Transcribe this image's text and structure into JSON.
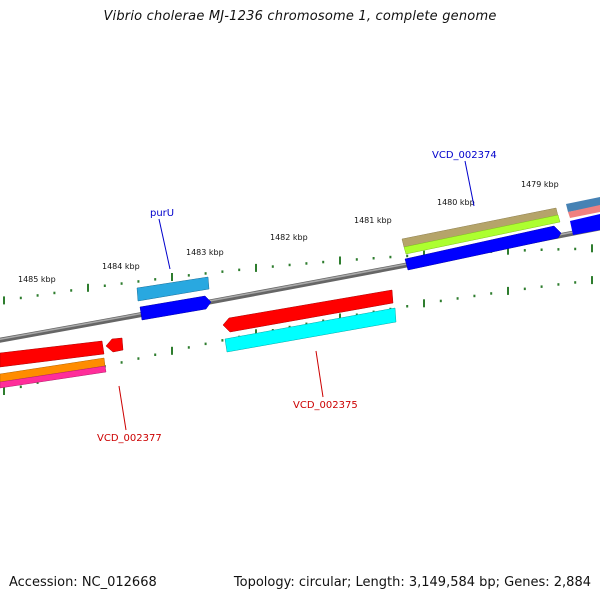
{
  "title": "Vibrio cholerae MJ-1236 chromosome 1, complete genome",
  "footer": {
    "accession": "Accession: NC_012668",
    "summary": "Topology: circular; Length: 3,149,584 bp; Genes: 2,884"
  },
  "kbp_labels": [
    "1485 kbp",
    "1484 kbp",
    "1483 kbp",
    "1482 kbp",
    "1481 kbp",
    "1480 kbp",
    "1479 kbp"
  ],
  "gene_labels": [
    "purU",
    "VCD_002374",
    "VCD_002375",
    "VCD_002377"
  ],
  "colors": {
    "backbone": "#808080",
    "tick": "#2e7d2e",
    "red": "#ff0000",
    "cyan": "#00ffff",
    "blue": "#0000ff",
    "sky": "#29a8e0",
    "orange": "#ff8c00",
    "magenta": "#ff2d9a",
    "olive": "#b5a46a",
    "lime": "#adff2f",
    "steel": "#4682b4",
    "pink": "#f08080",
    "label_blue": "#0000cc",
    "label_red": "#cc0000"
  }
}
